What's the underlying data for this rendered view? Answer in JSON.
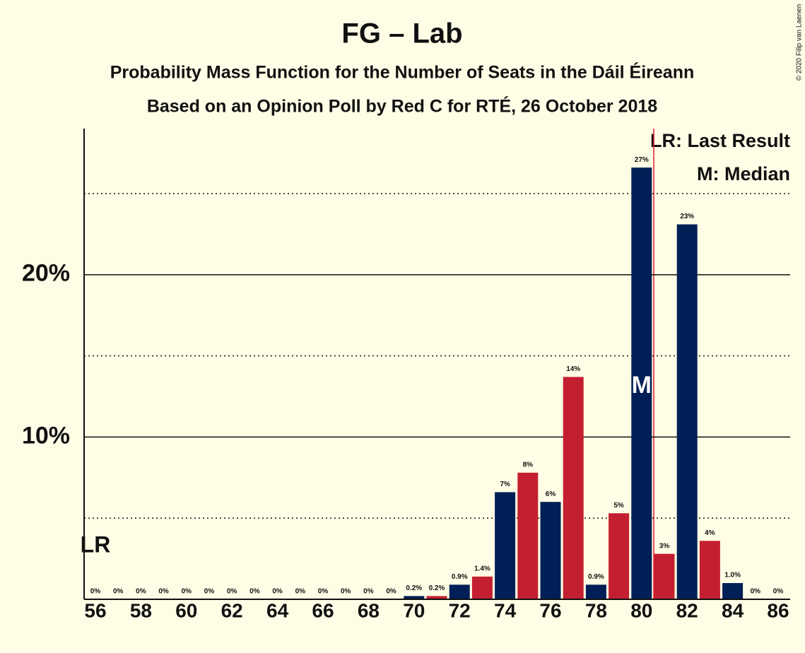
{
  "chart_data": {
    "type": "bar",
    "title": "FG – Lab",
    "subtitle": "Probability Mass Function for the Number of Seats in the Dáil Éireann",
    "subtitle2": "Based on an Opinion Poll by Red C for RTÉ, 26 October 2018",
    "copyright": "© 2020 Filip van Laenen",
    "categories": [
      56,
      null,
      58,
      null,
      60,
      null,
      62,
      null,
      64,
      null,
      66,
      null,
      68,
      null,
      70,
      null,
      72,
      null,
      74,
      null,
      76,
      null,
      78,
      null,
      80,
      null,
      82,
      null,
      84,
      null,
      86
    ],
    "values": [
      0,
      0,
      0,
      0,
      0,
      0,
      0,
      0,
      0,
      0,
      0,
      0,
      0,
      0,
      0.2,
      0.2,
      0.9,
      1.4,
      6.6,
      7.8,
      6.0,
      13.7,
      0.9,
      5.3,
      26.6,
      2.8,
      23.1,
      3.6,
      1.0,
      0,
      0
    ],
    "value_labels": [
      "0%",
      "0%",
      "0%",
      "0%",
      "0%",
      "0%",
      "0%",
      "0%",
      "0%",
      "0%",
      "0%",
      "0%",
      "0%",
      "0%",
      "0.2%",
      "0.2%",
      "0.9%",
      "1.4%",
      "7%",
      "8%",
      "6%",
      "14%",
      "0.9%",
      "5%",
      "27%",
      "3%",
      "23%",
      "4%",
      "1.0%",
      "0%",
      "0%"
    ],
    "colors": [
      "#001f56",
      "#c41f30"
    ],
    "ylim": [
      0,
      29
    ],
    "yticks": [
      {
        "value": 10,
        "label": "10%"
      },
      {
        "value": 20,
        "label": "20%"
      }
    ],
    "minor_yticks": [
      5,
      15,
      25
    ],
    "last_result": 56,
    "last_result_label": "LR",
    "median": 80,
    "median_label": "M",
    "legend": [
      "LR: Last Result",
      "M: Median"
    ]
  }
}
